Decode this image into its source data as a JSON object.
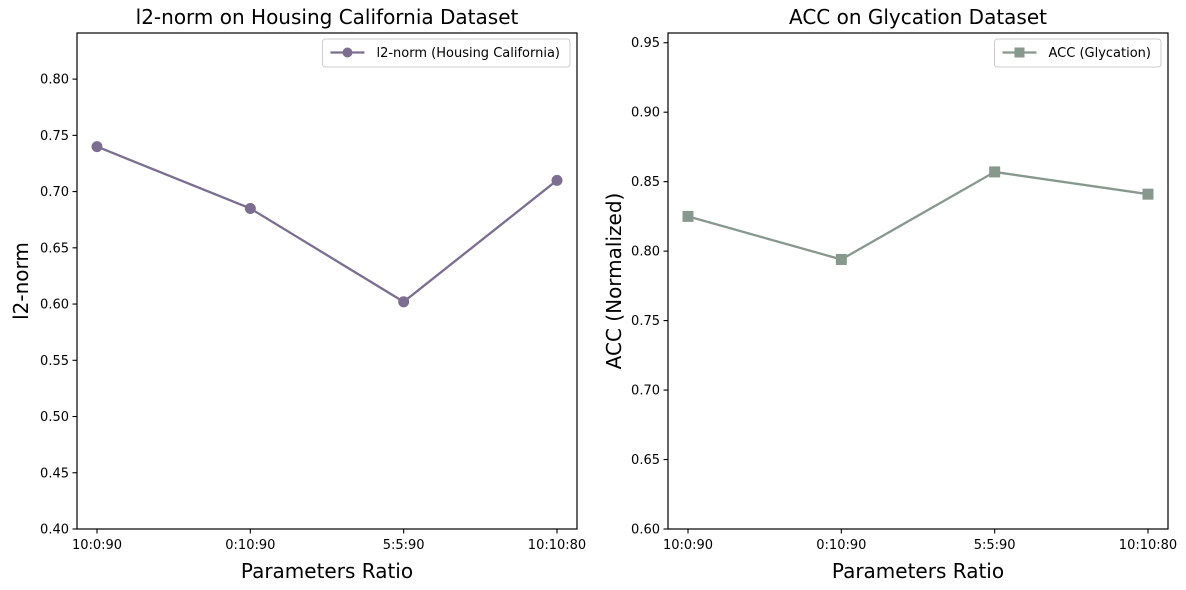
{
  "figure": {
    "background": "#ffffff",
    "text_color": "#000000",
    "legend_frame_border": "#cccccc",
    "legend_frame_fill": "#ffffff"
  },
  "chart_data": [
    {
      "type": "line",
      "title": "l2-norm on Housing California Dataset",
      "xlabel": "Parameters Ratio",
      "ylabel": "l2-norm",
      "categories": [
        "10:0:90",
        "0:10:90",
        "5:5:90",
        "10:10:80"
      ],
      "series": [
        {
          "name": "l2-norm (Housing California)",
          "values": [
            0.74,
            0.685,
            0.602,
            0.71
          ],
          "color": "#7c6d91",
          "marker": "circle"
        }
      ],
      "ylim": [
        0.4,
        0.841
      ],
      "yticks": [
        0.4,
        0.45,
        0.5,
        0.55,
        0.6,
        0.65,
        0.7,
        0.75,
        0.8
      ],
      "grid": false,
      "legend_position": "upper right"
    },
    {
      "type": "line",
      "title": "ACC on Glycation Dataset",
      "xlabel": "Parameters Ratio",
      "ylabel": "ACC (Normalized)",
      "categories": [
        "10:0:90",
        "0:10:90",
        "5:5:90",
        "10:10:80"
      ],
      "series": [
        {
          "name": "ACC (Glycation)",
          "values": [
            0.825,
            0.794,
            0.857,
            0.841
          ],
          "color": "#87988c",
          "marker": "square"
        }
      ],
      "ylim": [
        0.6,
        0.957
      ],
      "yticks": [
        0.6,
        0.65,
        0.7,
        0.75,
        0.8,
        0.85,
        0.9,
        0.95
      ],
      "grid": false,
      "legend_position": "upper right"
    }
  ]
}
